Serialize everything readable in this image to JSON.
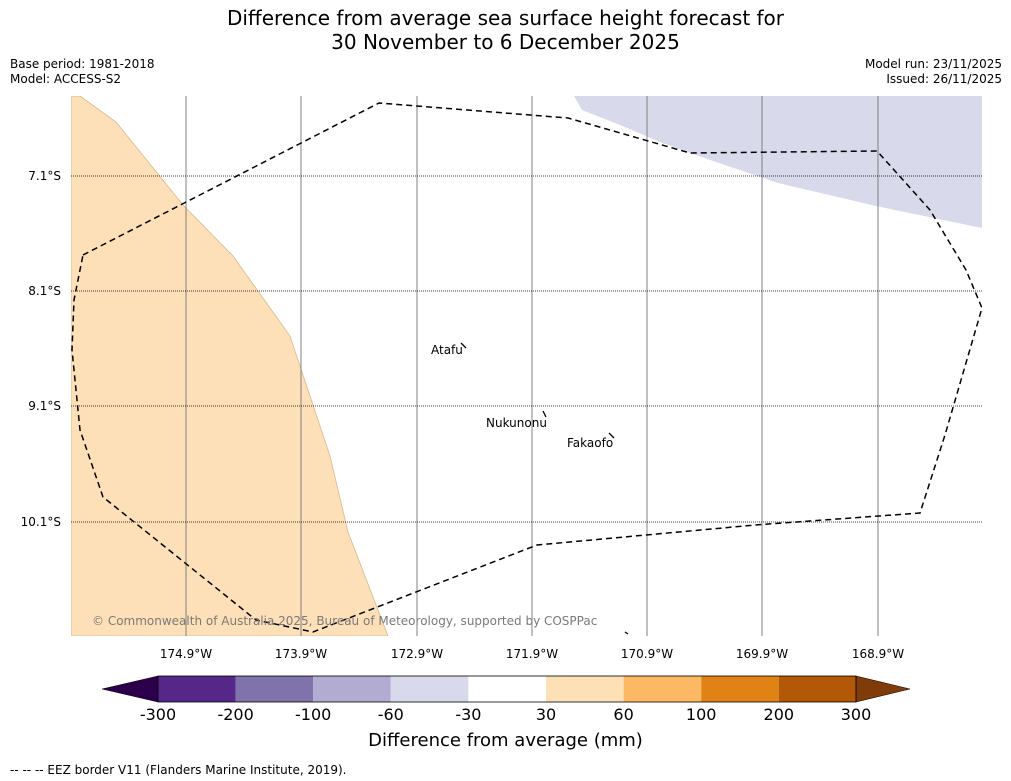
{
  "title": {
    "line1": "Difference from average sea surface height forecast for",
    "line2": "30 November to 6 December 2025"
  },
  "meta": {
    "base_period": "Base period: 1981-2018",
    "model": "Model: ACCESS-S2",
    "model_run": "Model run: 23/11/2025",
    "issued": "Issued: 26/11/2025"
  },
  "map": {
    "latitude_labels": [
      "7.1°S",
      "8.1°S",
      "9.1°S",
      "10.1°S"
    ],
    "longitude_labels": [
      "174.9°W",
      "173.9°W",
      "172.9°W",
      "171.9°W",
      "170.9°W",
      "169.9°W",
      "168.9°W"
    ],
    "places": [
      {
        "name": "Atafu"
      },
      {
        "name": "Nukunonu"
      },
      {
        "name": "Fakaofo"
      }
    ],
    "copyright": "© Commonwealth of Australia 2025, Bureau of Meteorology, supported by COSPPac",
    "colors": {
      "positive_anomaly": "#fde0b7",
      "negative_anomaly": "#d8d9ea",
      "grid": "#808080",
      "eez_border": "#000000"
    }
  },
  "colorbar": {
    "label": "Difference from average (mm)",
    "ticks": [
      "-300",
      "-200",
      "-100",
      "-60",
      "-30",
      "30",
      "60",
      "100",
      "200",
      "300"
    ],
    "colors": [
      "#2d004b",
      "#542788",
      "#8073ac",
      "#b2abd2",
      "#d8daeb",
      "#ffffff",
      "#fee0b6",
      "#fdb863",
      "#e08214",
      "#b35806",
      "#7f3b08"
    ]
  },
  "footnote": "--  --  -- EEZ border V11 (Flanders Marine Institute, 2019)."
}
